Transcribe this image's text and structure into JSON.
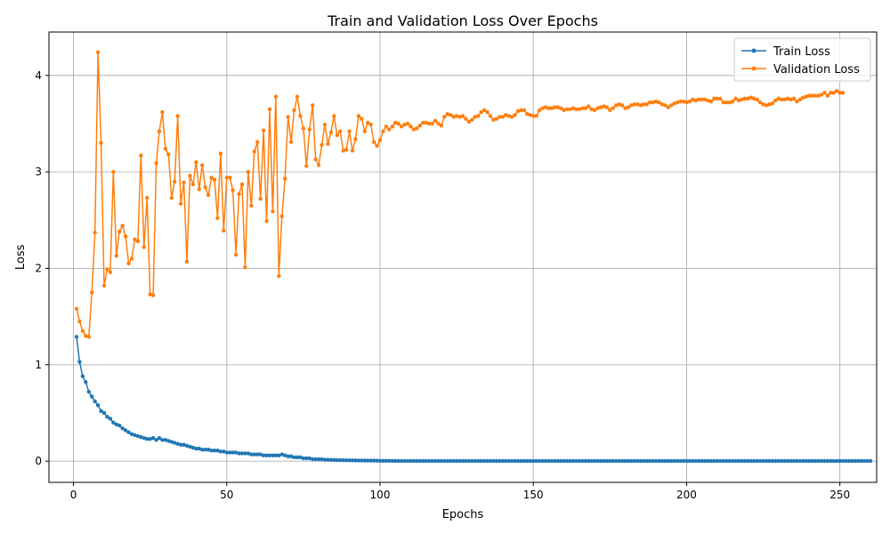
{
  "chart_data": {
    "type": "line",
    "title": "Train and Validation Loss Over Epochs",
    "xlabel": "Epochs",
    "ylabel": "Loss",
    "xlim": [
      -8,
      262
    ],
    "ylim": [
      -0.22,
      4.45
    ],
    "xticks": [
      0,
      50,
      100,
      150,
      200,
      250
    ],
    "yticks": [
      0,
      1,
      2,
      3,
      4
    ],
    "grid": true,
    "legend_position": "top-right",
    "series": [
      {
        "name": "Train Loss",
        "color": "#1f77b4",
        "marker": "circle",
        "epochs_start": 1,
        "values": [
          1.29,
          1.03,
          0.88,
          0.82,
          0.72,
          0.67,
          0.62,
          0.58,
          0.52,
          0.5,
          0.46,
          0.44,
          0.4,
          0.38,
          0.37,
          0.34,
          0.32,
          0.3,
          0.28,
          0.27,
          0.26,
          0.25,
          0.24,
          0.23,
          0.23,
          0.24,
          0.22,
          0.24,
          0.22,
          0.22,
          0.21,
          0.2,
          0.19,
          0.18,
          0.17,
          0.17,
          0.16,
          0.15,
          0.14,
          0.13,
          0.13,
          0.12,
          0.12,
          0.12,
          0.11,
          0.11,
          0.11,
          0.1,
          0.1,
          0.09,
          0.09,
          0.09,
          0.09,
          0.08,
          0.08,
          0.08,
          0.08,
          0.07,
          0.07,
          0.07,
          0.07,
          0.06,
          0.06,
          0.06,
          0.06,
          0.06,
          0.06,
          0.07,
          0.06,
          0.05,
          0.05,
          0.04,
          0.04,
          0.04,
          0.03,
          0.03,
          0.03,
          0.02,
          0.02,
          0.02,
          0.02,
          0.015,
          0.015,
          0.013,
          0.012,
          0.011,
          0.01,
          0.01,
          0.009,
          0.009,
          0.008,
          0.008,
          0.007,
          0.007,
          0.007,
          0.006,
          0.006,
          0.006,
          0.005,
          0.003,
          0.003,
          0.003,
          0.003,
          0.003,
          0.002,
          0.002,
          0.002,
          0.002,
          0.002,
          0.002,
          0.002,
          0.002,
          0.002,
          0.002,
          0.002,
          0.002,
          0.002,
          0.002,
          0.002,
          0.002,
          0.002,
          0.002,
          0.002,
          0.002,
          0.002,
          0.002,
          0.002,
          0.002,
          0.002,
          0.002,
          0.002,
          0.002,
          0.002,
          0.002,
          0.002,
          0.002,
          0.002,
          0.002,
          0.002,
          0.002,
          0.002,
          0.002,
          0.002,
          0.002,
          0.002,
          0.002,
          0.002,
          0.002,
          0.002,
          0.002,
          0.002,
          0.002,
          0.002,
          0.002,
          0.002,
          0.002,
          0.002,
          0.002,
          0.002,
          0.002,
          0.002,
          0.002,
          0.002,
          0.002,
          0.002,
          0.002,
          0.002,
          0.002,
          0.002,
          0.002,
          0.002,
          0.002,
          0.002,
          0.002,
          0.002,
          0.002,
          0.002,
          0.002,
          0.002,
          0.002,
          0.002,
          0.002,
          0.002,
          0.002,
          0.002,
          0.002,
          0.002,
          0.002,
          0.002,
          0.002,
          0.002,
          0.002,
          0.002,
          0.002,
          0.002,
          0.002,
          0.002,
          0.002,
          0.002,
          0.002,
          0.002,
          0.002,
          0.002,
          0.002,
          0.002,
          0.002,
          0.002,
          0.002,
          0.002,
          0.002,
          0.002,
          0.002,
          0.002,
          0.002,
          0.002,
          0.002,
          0.002,
          0.002,
          0.002,
          0.002,
          0.002,
          0.002,
          0.002,
          0.002,
          0.002,
          0.002,
          0.002,
          0.002,
          0.002,
          0.002,
          0.002,
          0.002,
          0.002,
          0.002,
          0.002,
          0.002,
          0.002,
          0.002,
          0.002,
          0.002,
          0.002,
          0.002,
          0.002,
          0.002,
          0.002,
          0.002,
          0.002,
          0.002,
          0.002,
          0.002,
          0.002,
          0.002,
          0.002,
          0.002,
          0.002,
          0.002,
          0.002,
          0.002,
          0.002,
          0.002
        ]
      },
      {
        "name": "Validation Loss",
        "color": "#ff7f0e",
        "marker": "circle",
        "epochs_start": 1,
        "values": [
          1.58,
          1.45,
          1.35,
          1.3,
          1.29,
          1.75,
          2.37,
          4.24,
          3.3,
          1.82,
          1.99,
          1.96,
          3.0,
          2.13,
          2.38,
          2.44,
          2.33,
          2.05,
          2.1,
          2.3,
          2.28,
          3.17,
          2.22,
          2.73,
          1.73,
          1.72,
          3.09,
          3.42,
          3.62,
          3.24,
          3.18,
          2.73,
          2.9,
          3.58,
          2.67,
          2.89,
          2.07,
          2.96,
          2.87,
          3.1,
          2.82,
          3.07,
          2.84,
          2.76,
          2.94,
          2.92,
          2.52,
          3.19,
          2.39,
          2.94,
          2.94,
          2.81,
          2.14,
          2.77,
          2.87,
          2.01,
          3.0,
          2.65,
          3.21,
          3.31,
          2.72,
          3.43,
          2.49,
          3.65,
          2.59,
          3.78,
          1.92,
          2.54,
          2.93,
          3.57,
          3.31,
          3.64,
          3.78,
          3.58,
          3.45,
          3.06,
          3.44,
          3.69,
          3.13,
          3.07,
          3.28,
          3.49,
          3.29,
          3.41,
          3.58,
          3.38,
          3.42,
          3.22,
          3.23,
          3.42,
          3.22,
          3.34,
          3.58,
          3.55,
          3.42,
          3.51,
          3.49,
          3.31,
          3.27,
          3.33,
          3.42,
          3.47,
          3.44,
          3.47,
          3.51,
          3.5,
          3.47,
          3.49,
          3.5,
          3.47,
          3.44,
          3.45,
          3.48,
          3.51,
          3.51,
          3.5,
          3.5,
          3.53,
          3.5,
          3.48,
          3.57,
          3.6,
          3.59,
          3.57,
          3.58,
          3.57,
          3.58,
          3.55,
          3.52,
          3.54,
          3.57,
          3.58,
          3.62,
          3.64,
          3.62,
          3.58,
          3.54,
          3.55,
          3.57,
          3.57,
          3.59,
          3.58,
          3.57,
          3.59,
          3.63,
          3.64,
          3.64,
          3.6,
          3.59,
          3.58,
          3.58,
          3.64,
          3.66,
          3.67,
          3.66,
          3.66,
          3.67,
          3.67,
          3.66,
          3.64,
          3.65,
          3.65,
          3.66,
          3.65,
          3.65,
          3.66,
          3.66,
          3.68,
          3.65,
          3.64,
          3.66,
          3.67,
          3.68,
          3.67,
          3.64,
          3.66,
          3.69,
          3.7,
          3.69,
          3.66,
          3.67,
          3.69,
          3.7,
          3.7,
          3.69,
          3.7,
          3.7,
          3.72,
          3.72,
          3.73,
          3.72,
          3.7,
          3.69,
          3.67,
          3.69,
          3.71,
          3.72,
          3.73,
          3.73,
          3.72,
          3.73,
          3.75,
          3.74,
          3.75,
          3.75,
          3.75,
          3.74,
          3.73,
          3.76,
          3.76,
          3.76,
          3.72,
          3.72,
          3.72,
          3.73,
          3.76,
          3.74,
          3.75,
          3.76,
          3.76,
          3.77,
          3.76,
          3.75,
          3.72,
          3.7,
          3.69,
          3.7,
          3.71,
          3.74,
          3.76,
          3.75,
          3.75,
          3.76,
          3.75,
          3.76,
          3.73,
          3.75,
          3.77,
          3.78,
          3.79,
          3.79,
          3.79,
          3.79,
          3.8,
          3.82,
          3.79,
          3.82,
          3.82,
          3.84,
          3.82,
          3.82
        ]
      }
    ]
  }
}
